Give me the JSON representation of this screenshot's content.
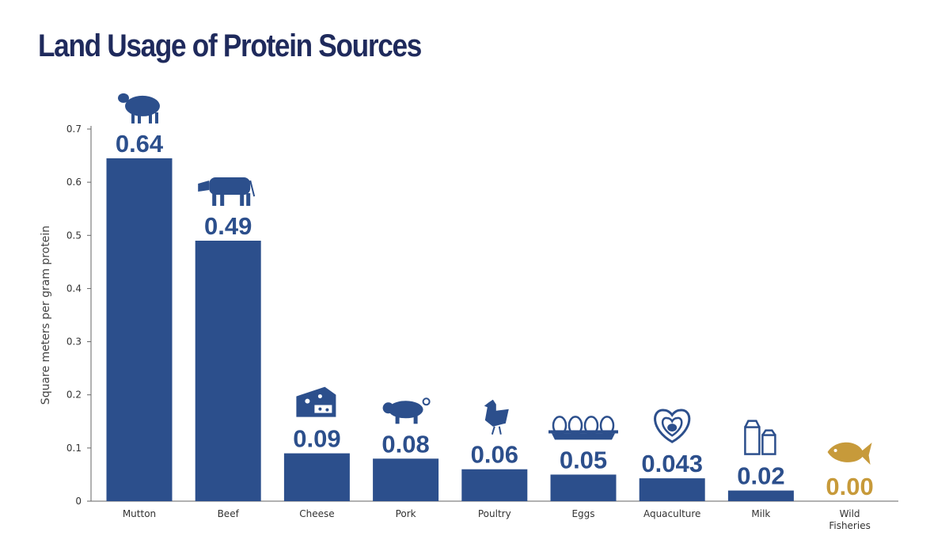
{
  "title": "Land Usage of Protein Sources",
  "colors": {
    "bar": "#2c4f8c",
    "highlight": "#c79a3a",
    "title": "#1f2a5c",
    "axis": "#666666"
  },
  "chart_data": {
    "type": "bar",
    "title": "Land Usage of Protein Sources",
    "xlabel": "",
    "ylabel": "Square meters per gram protein",
    "ylim": [
      0,
      0.7
    ],
    "yticks": [
      "0",
      "0.1",
      "0.2",
      "0.3",
      "0.4",
      "0.5",
      "0.6",
      "0.7"
    ],
    "grid": false,
    "categories": [
      "Mutton",
      "Beef",
      "Cheese",
      "Pork",
      "Poultry",
      "Eggs",
      "Aquaculture",
      "Milk",
      "Wild Fisheries"
    ],
    "values": [
      0.645,
      0.49,
      0.09,
      0.08,
      0.06,
      0.05,
      0.043,
      0.02,
      0.0
    ],
    "value_labels": [
      "0.64",
      "0.49",
      "0.09",
      "0.08",
      "0.06",
      "0.05",
      "0.043",
      "0.02",
      "0.00"
    ],
    "icons": [
      "sheep-icon",
      "cow-icon",
      "cheese-icon",
      "pig-icon",
      "chicken-icon",
      "eggs-icon",
      "oyster-icon",
      "milk-carton-icon",
      "fish-icon"
    ],
    "highlight_category": "Wild Fisheries"
  }
}
